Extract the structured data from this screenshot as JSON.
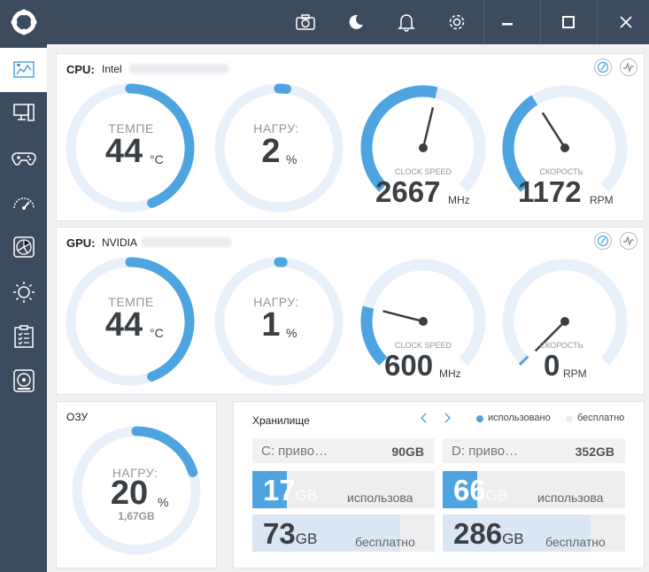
{
  "titlebar": {
    "icons": [
      "camera-icon",
      "moon-icon",
      "bell-icon",
      "gear-icon",
      "minimize-icon",
      "maximize-icon",
      "close-icon"
    ]
  },
  "sidebar": {
    "items": [
      {
        "name": "dashboard-icon",
        "active": true
      },
      {
        "name": "computer-icon",
        "active": false
      },
      {
        "name": "gamepad-icon",
        "active": false
      },
      {
        "name": "speedometer-icon",
        "active": false
      },
      {
        "name": "fan-icon",
        "active": false
      },
      {
        "name": "brightness-icon",
        "active": false
      },
      {
        "name": "clipboard-icon",
        "active": false
      },
      {
        "name": "disk-icon",
        "active": false
      }
    ]
  },
  "colors": {
    "accent": "#4ea4e0",
    "track": "#e8f1fa",
    "dark": "#3d4b5f"
  },
  "cpu": {
    "label": "CPU:",
    "brand": "Intel",
    "temp": {
      "label": "ТЕМПЕ",
      "value": "44",
      "unit": "°C",
      "fraction": 0.44
    },
    "load": {
      "label": "НАГРУ:",
      "value": "2",
      "unit": "%",
      "fraction": 0.02
    },
    "clock": {
      "label": "CLOCK SPEED",
      "value": "2667",
      "unit": "MHz",
      "fraction": 0.55
    },
    "fan": {
      "label": "СКОРОСТЬ",
      "value": "1172",
      "unit": "RPM",
      "fraction": 0.38
    }
  },
  "gpu": {
    "label": "GPU:",
    "brand": "NVIDIA",
    "temp": {
      "label": "ТЕМПЕ",
      "value": "44",
      "unit": "°C",
      "fraction": 0.44
    },
    "load": {
      "label": "НАГРУ:",
      "value": "1",
      "unit": "%",
      "fraction": 0.01
    },
    "clock": {
      "label": "CLOCK SPEED",
      "value": "600",
      "unit": "MHz",
      "fraction": 0.22
    },
    "fan": {
      "label": "СКОРОСТЬ",
      "value": "0",
      "unit": "RPM",
      "fraction": 0.0
    }
  },
  "ram": {
    "title": "ОЗУ",
    "label": "НАГРУ:",
    "value": "20",
    "unit": "%",
    "used": "1,67GB",
    "fraction": 0.2
  },
  "storage": {
    "title": "Хранилище",
    "legend_used": "использовано",
    "legend_free": "бесплатно",
    "drives": [
      {
        "name": "C: приво…",
        "total": "90GB",
        "used": "17",
        "used_unit": "GB",
        "used_label": "использова",
        "free": "73",
        "free_unit": "GB",
        "free_label": "бесплатно",
        "used_fraction": 0.19,
        "free_fraction": 0.81
      },
      {
        "name": "D: приво…",
        "total": "352GB",
        "used": "66",
        "used_unit": "GB",
        "used_label": "использова",
        "free": "286",
        "free_unit": "GB",
        "free_label": "бесплатно",
        "used_fraction": 0.19,
        "free_fraction": 0.81
      }
    ]
  }
}
